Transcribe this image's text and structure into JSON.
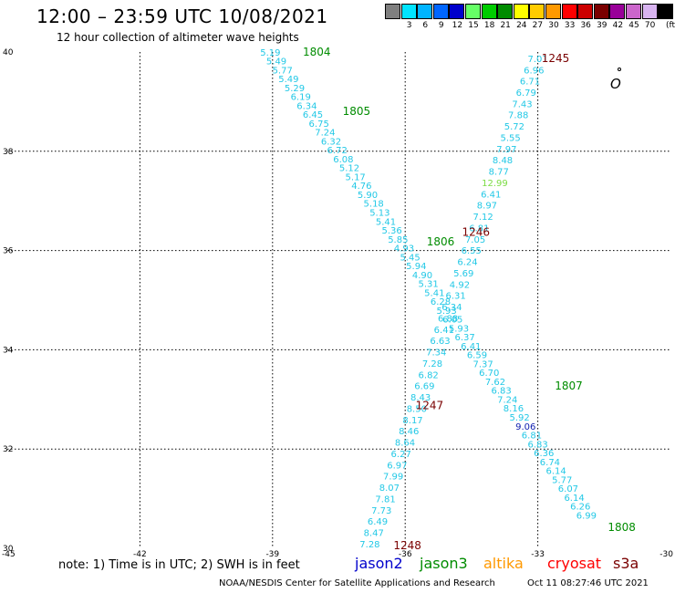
{
  "title": "12:00 – 23:59 UTC 10/08/2021",
  "subtitle": "12 hour collection of altimeter wave heights",
  "legend": {
    "unit": "(ft)",
    "bins": [
      {
        "label": "",
        "color": "#7f7f7f"
      },
      {
        "label": "3",
        "color": "#00e4ff"
      },
      {
        "label": "6",
        "color": "#00b4ff"
      },
      {
        "label": "9",
        "color": "#0066ff"
      },
      {
        "label": "12",
        "color": "#0000cc"
      },
      {
        "label": "15",
        "color": "#66ff66"
      },
      {
        "label": "18",
        "color": "#00cc00"
      },
      {
        "label": "21",
        "color": "#008c00"
      },
      {
        "label": "24",
        "color": "#ffff00"
      },
      {
        "label": "27",
        "color": "#ffcc00"
      },
      {
        "label": "30",
        "color": "#ff9900"
      },
      {
        "label": "33",
        "color": "#ff0000"
      },
      {
        "label": "36",
        "color": "#cc0000"
      },
      {
        "label": "39",
        "color": "#7a0000"
      },
      {
        "label": "42",
        "color": "#990099"
      },
      {
        "label": "45",
        "color": "#cc66cc"
      },
      {
        "label": "70",
        "color": "#d8b4f0"
      },
      {
        "label": "",
        "color": "#000000"
      }
    ]
  },
  "map": {
    "lon_ticks": [
      "-45",
      "-42",
      "-39",
      "-36",
      "-33",
      "-30"
    ],
    "lat_ticks": [
      "30",
      "32",
      "34",
      "36",
      "38",
      "40"
    ],
    "lon_range": [
      -45,
      -30
    ],
    "lat_range": [
      30,
      40
    ]
  },
  "colors": {
    "value_light": "#22c8e6",
    "value_green": "#7cdc44",
    "value_blue": "#1020b0",
    "time_green": "#008c00",
    "time_darkred": "#7a0000"
  },
  "track_labels": [
    {
      "text": "1804",
      "lon": -38.0,
      "lat": 39.93,
      "color": "time_green"
    },
    {
      "text": "1805",
      "lon": -37.1,
      "lat": 38.73,
      "color": "time_green"
    },
    {
      "text": "1806",
      "lon": -35.2,
      "lat": 36.1,
      "color": "time_green"
    },
    {
      "text": "1807",
      "lon": -32.3,
      "lat": 33.2,
      "color": "time_green"
    },
    {
      "text": "1808",
      "lon": -31.1,
      "lat": 30.35,
      "color": "time_green"
    },
    {
      "text": "1245",
      "lon": -32.6,
      "lat": 39.8,
      "color": "time_darkred"
    },
    {
      "text": "1246",
      "lon": -34.4,
      "lat": 36.3,
      "color": "time_darkred"
    },
    {
      "text": "1247",
      "lon": -35.45,
      "lat": 32.8,
      "color": "time_darkred"
    },
    {
      "text": "1248",
      "lon": -35.95,
      "lat": 29.98,
      "color": "time_darkred"
    }
  ],
  "track_a_values": [
    "5.19",
    "5.49",
    "5.77",
    "5.49",
    "5.29",
    "6.19",
    "6.34",
    "6.45",
    "6.75",
    "7.24",
    "6.32",
    "6.72",
    "6.08",
    "5.12",
    "5.17",
    "4.76",
    "5.90",
    "5.18",
    "5.13",
    "5.41",
    "5.36",
    "5.85",
    "4.93",
    "5.45",
    "5.94",
    "4.90",
    "5.31",
    "5.41",
    "6.28",
    "5.93",
    "6.05",
    "5.93",
    "6.37",
    "6.41",
    "6.59",
    "7.37",
    "6.70",
    "7.62",
    "6.83",
    "7.24",
    "8.16",
    "5.92",
    "9.06",
    "6.81",
    "6.83",
    "6.36",
    "6.74",
    "6.14",
    "5.77",
    "6.07",
    "6.14",
    "6.26",
    "6.99"
  ],
  "track_a_special": {
    "9.06": "value_blue"
  },
  "track_b_values": [
    "7.01",
    "6.96",
    "6.71",
    "6.79",
    "7.43",
    "7.88",
    "5.72",
    "5.55",
    "7.97",
    "8.48",
    "8.77",
    "12.99",
    "6.41",
    "8.97",
    "7.12",
    "6.81",
    "7.05",
    "6.55",
    "6.24",
    "5.69",
    "4.92",
    "6.31",
    "6.34",
    "6.88",
    "6.41",
    "6.63",
    "7.34",
    "7.28",
    "6.82",
    "6.69",
    "8.43",
    "8.50",
    "8.17",
    "8.46",
    "8.64",
    "6.27",
    "6.97",
    "7.99",
    "8.07",
    "7.81",
    "7.73",
    "6.49",
    "8.47",
    "7.28"
  ],
  "track_b_special": {
    "12.99": "value_green"
  },
  "note": "note:  1) Time is in UTC;  2) SWH is in feet",
  "satellites": [
    {
      "name": "jason2",
      "color": "#0000cc"
    },
    {
      "name": "jason3",
      "color": "#008c00"
    },
    {
      "name": "altika",
      "color": "#ff9900"
    },
    {
      "name": "cryosat",
      "color": "#ff0000"
    },
    {
      "name": "s3a",
      "color": "#7a0000"
    }
  ],
  "credit": "NOAA/NESDIS Center for Satellite Applications and Research",
  "timestamp": "Oct 11 08:27:46 UTC 2021"
}
